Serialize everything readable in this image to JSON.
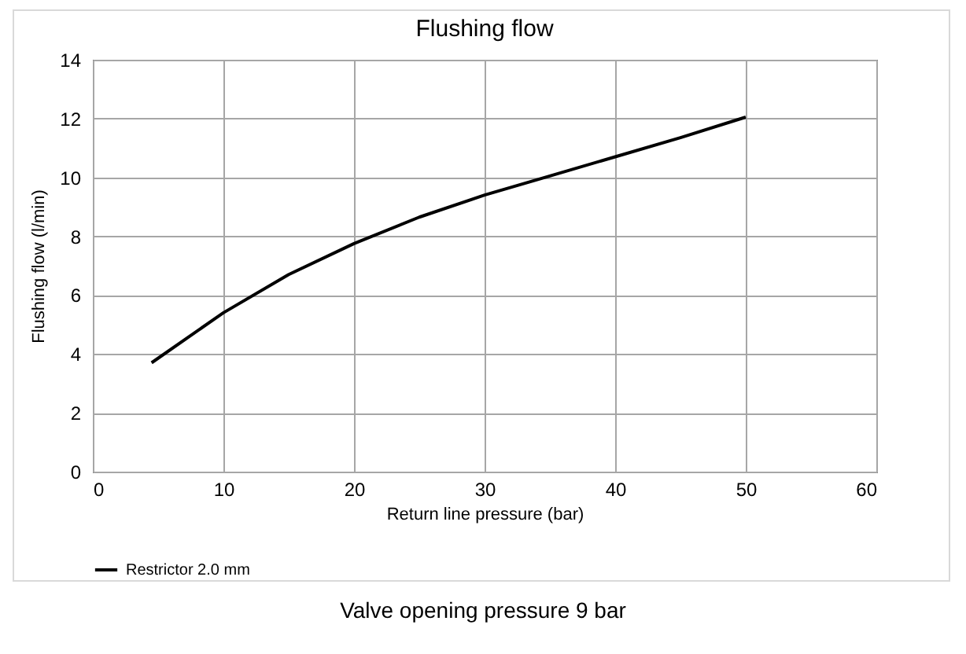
{
  "chart_data": {
    "type": "line",
    "title": "Flushing flow",
    "xlabel": "Return line pressure (bar)",
    "ylabel": "Flushing flow (l/min)",
    "x": [
      4.5,
      10,
      15,
      20,
      25,
      30,
      35,
      40,
      45,
      50
    ],
    "series": [
      {
        "name": "Restrictor 2.0 mm",
        "color": "#000000",
        "values": [
          3.7,
          5.4,
          6.7,
          7.75,
          8.65,
          9.4,
          10.05,
          10.7,
          11.35,
          12.05
        ]
      }
    ],
    "xlim": [
      0,
      60
    ],
    "xticks": [
      0,
      10,
      20,
      30,
      40,
      50,
      60
    ],
    "ylim": [
      0,
      14
    ],
    "yticks": [
      0,
      2,
      4,
      6,
      8,
      10,
      12,
      14
    ],
    "grid": true,
    "legend": "bottom",
    "marker": "none",
    "line_style": "solid",
    "annotations": [
      "Valve opening pressure 9 bar"
    ]
  }
}
